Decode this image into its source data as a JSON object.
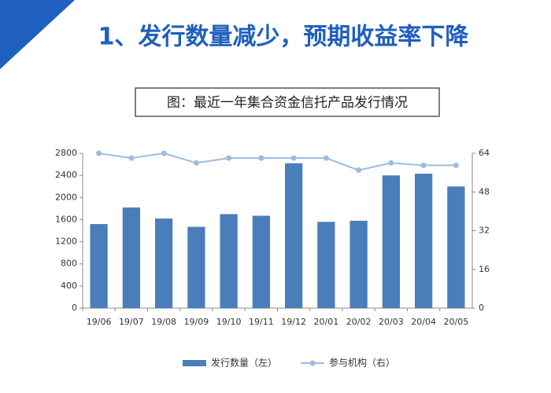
{
  "slide_title": "1、发行数量减少，预期收益率下降",
  "chart_data": {
    "type": "bar",
    "title": "图：最近一年集合资金信托产品发行情况",
    "categories": [
      "19/06",
      "19/07",
      "19/08",
      "19/09",
      "19/10",
      "19/11",
      "19/12",
      "20/01",
      "20/02",
      "20/03",
      "20/04",
      "20/05"
    ],
    "series": [
      {
        "name": "发行数量（左）",
        "type": "bar",
        "color": "#4a7ebb",
        "values": [
          1520,
          1820,
          1620,
          1470,
          1700,
          1670,
          2620,
          1560,
          1580,
          2400,
          2430,
          2200
        ]
      },
      {
        "name": "参与机构（右）",
        "type": "line",
        "axis": "y2",
        "color": "#9dbbe0",
        "values": [
          64,
          62,
          64,
          60,
          62,
          62,
          62,
          62,
          57,
          60,
          59,
          59
        ]
      }
    ],
    "ylim": [
      0,
      2800
    ],
    "yticks": [
      0,
      400,
      800,
      1200,
      1600,
      2000,
      2400,
      2800
    ],
    "y2lim": [
      0,
      64
    ],
    "y2ticks": [
      0,
      16,
      32,
      48,
      64
    ],
    "grid": false,
    "legend": "bottom"
  }
}
